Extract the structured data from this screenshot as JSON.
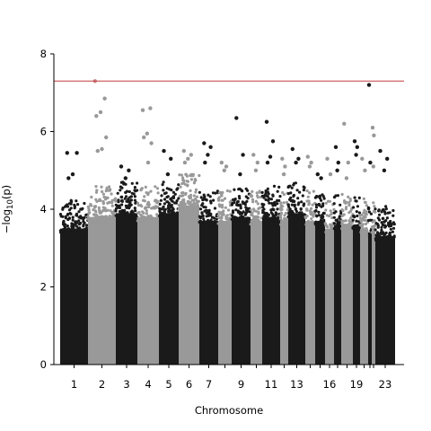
{
  "chart_data": {
    "type": "scatter",
    "subtype": "manhattan",
    "title": "",
    "xlabel": "Chromosome",
    "ylabel_parts": {
      "prefix": "−log",
      "sub": "10",
      "suffix": "(p)"
    },
    "ylim": [
      0,
      8
    ],
    "yticks": [
      0,
      2,
      4,
      6,
      8
    ],
    "grid": false,
    "legend": "none",
    "significance_threshold": 7.3,
    "colors": {
      "odd": "#1a1a1a",
      "even": "#999999",
      "threshold": "#c43c3c",
      "hit_even": "#c98a8a"
    },
    "chromosome_tick_labels": [
      "1",
      "2",
      "3",
      "4",
      "5",
      "6",
      "7",
      "9",
      "11",
      "13",
      "16",
      "19",
      "23"
    ],
    "chromosomes": [
      {
        "chr": "1",
        "min_peak": 3.8,
        "top": [
          5.45,
          5.45,
          4.9,
          4.8
        ]
      },
      {
        "chr": "2",
        "min_peak": 4.1,
        "top": [
          7.3,
          6.85,
          6.5,
          6.4,
          5.85,
          5.55,
          5.5
        ]
      },
      {
        "chr": "3",
        "min_peak": 4.2,
        "top": [
          5.1,
          5.0,
          4.8
        ]
      },
      {
        "chr": "4",
        "min_peak": 4.1,
        "top": [
          6.55,
          6.6,
          5.95,
          5.85,
          5.7,
          5.2
        ]
      },
      {
        "chr": "5",
        "min_peak": 4.2,
        "top": [
          5.5,
          5.3,
          4.9
        ]
      },
      {
        "chr": "6",
        "min_peak": 4.4,
        "top": [
          5.5,
          5.4,
          5.3,
          5.2
        ]
      },
      {
        "chr": "7",
        "min_peak": 4.0,
        "top": [
          5.7,
          5.6,
          5.4,
          5.2
        ]
      },
      {
        "chr": "8",
        "min_peak": 4.0,
        "top": [
          5.2,
          5.1,
          5.0
        ]
      },
      {
        "chr": "9",
        "min_peak": 4.1,
        "top": [
          6.35,
          5.4,
          4.9
        ]
      },
      {
        "chr": "10",
        "min_peak": 4.0,
        "top": [
          5.4,
          5.2,
          5.0
        ]
      },
      {
        "chr": "11",
        "min_peak": 4.1,
        "top": [
          6.25,
          5.75,
          5.35,
          5.2
        ]
      },
      {
        "chr": "12",
        "min_peak": 4.0,
        "top": [
          5.3,
          5.1,
          4.9
        ]
      },
      {
        "chr": "13",
        "min_peak": 4.2,
        "top": [
          5.55,
          5.3,
          5.2
        ]
      },
      {
        "chr": "14",
        "min_peak": 4.0,
        "top": [
          5.35,
          5.2,
          5.1
        ]
      },
      {
        "chr": "15",
        "min_peak": 4.0,
        "top": [
          4.9,
          4.8
        ]
      },
      {
        "chr": "16",
        "min_peak": 3.8,
        "top": [
          5.3,
          4.9
        ]
      },
      {
        "chr": "17",
        "min_peak": 3.9,
        "top": [
          5.6,
          5.2,
          5.0
        ]
      },
      {
        "chr": "18",
        "min_peak": 3.9,
        "top": [
          6.2,
          5.2,
          4.8
        ]
      },
      {
        "chr": "19",
        "min_peak": 3.9,
        "top": [
          5.75,
          5.6,
          5.4
        ]
      },
      {
        "chr": "20",
        "min_peak": 3.8,
        "top": [
          5.3,
          5.0
        ]
      },
      {
        "chr": "21",
        "min_peak": 3.7,
        "top": [
          7.2,
          5.2
        ]
      },
      {
        "chr": "22",
        "min_peak": 3.8,
        "top": [
          6.1,
          5.9,
          5.1
        ]
      },
      {
        "chr": "23",
        "min_peak": 3.6,
        "top": [
          5.5,
          5.3,
          5.0
        ]
      }
    ]
  }
}
